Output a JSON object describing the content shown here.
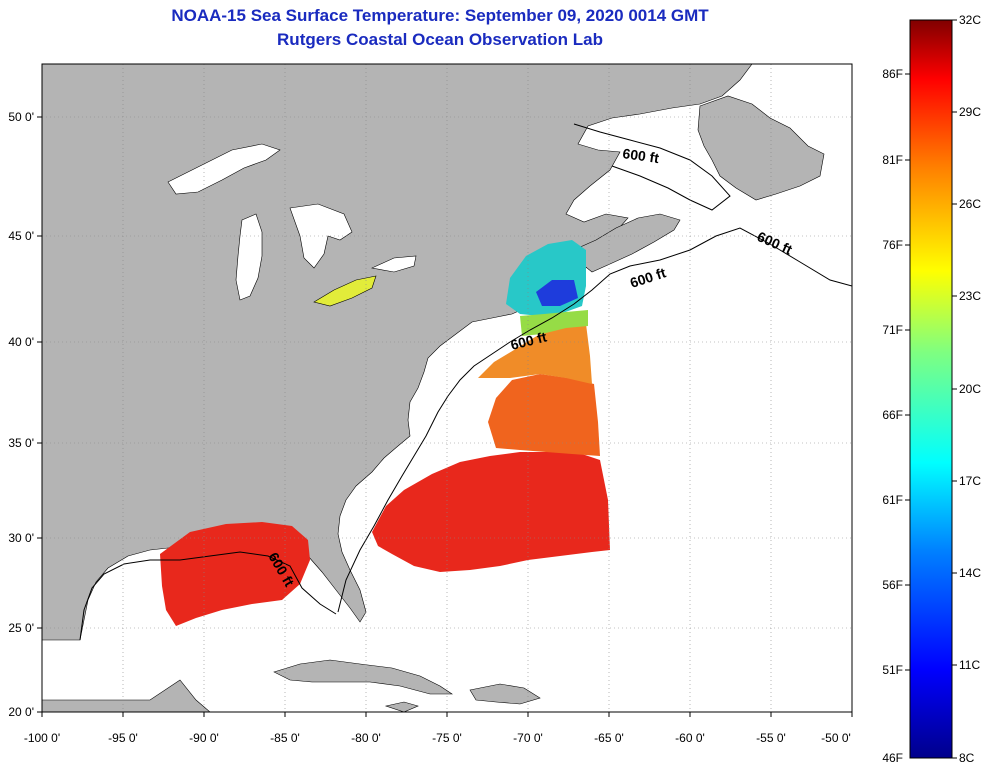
{
  "header": {
    "title": "NOAA-15 Sea Surface Temperature:  September 09, 2020 0014 GMT",
    "subtitle": "Rutgers Coastal Ocean Observation Lab"
  },
  "axes": {
    "lon_labels": [
      "-100 0'",
      "-95 0'",
      "-90 0'",
      "-85 0'",
      "-80 0'",
      "-75 0'",
      "-70 0'",
      "-65 0'",
      "-60 0'",
      "-55 0'",
      "-50 0'"
    ],
    "lat_labels": [
      "20 0'",
      "25 0'",
      "30 0'",
      "35 0'",
      "40 0'",
      "45 0'",
      "50 0'"
    ]
  },
  "contours": {
    "label_1": "600 ft",
    "label_2": "600 ft",
    "label_3": "600 ft",
    "label_4": "600 ft",
    "label_5": "600 ft"
  },
  "colorbar": {
    "celsius": [
      "32C",
      "29C",
      "26C",
      "23C",
      "20C",
      "17C",
      "14C",
      "11C",
      "8C"
    ],
    "fahrenheit": [
      "86F",
      "81F",
      "76F",
      "71F",
      "66F",
      "61F",
      "56F",
      "51F",
      "46F"
    ]
  },
  "colors": {
    "land": "#b4b4b4",
    "title": "#1a2bbf",
    "sst_warm": "#e8281c",
    "sst_orange": "#f0641e",
    "sst_cool": "#28c8c8",
    "sst_cold": "#1e3cdc"
  }
}
